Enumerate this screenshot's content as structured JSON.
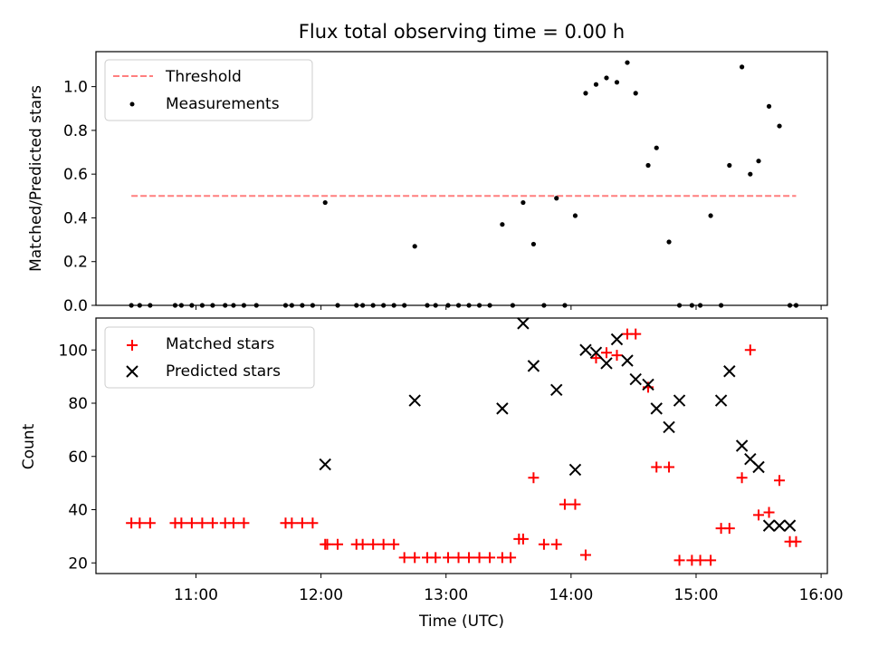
{
  "chart_data": [
    {
      "type": "scatter",
      "title": "Flux total observing time = 0.00 h",
      "ylabel": "Matched/Predicted stars",
      "xlabel": "",
      "xlim": [
        "10:12",
        "16:03"
      ],
      "ylim": [
        0,
        1.16
      ],
      "xticks": [
        "11:00",
        "12:00",
        "13:00",
        "14:00",
        "15:00",
        "16:00"
      ],
      "yticks": [
        0.0,
        0.2,
        0.4,
        0.6,
        0.8,
        1.0
      ],
      "ytick_labels": [
        "0.0",
        "0.2",
        "0.4",
        "0.6",
        "0.8",
        "1.0"
      ],
      "legend_position": "top-left",
      "series": [
        {
          "name": "Threshold",
          "kind": "line",
          "style": "dashed",
          "color": "#ff7f7f",
          "x": [
            "10:29",
            "15:48"
          ],
          "y": [
            0.5,
            0.5
          ]
        },
        {
          "name": "Measurements",
          "kind": "scatter",
          "marker": "dot",
          "color": "#000000",
          "x": [
            "10:29",
            "10:33",
            "10:38",
            "10:50",
            "10:53",
            "10:58",
            "11:03",
            "11:08",
            "11:14",
            "11:18",
            "11:23",
            "11:29",
            "11:43",
            "11:46",
            "11:51",
            "11:56",
            "12:02",
            "12:08",
            "12:17",
            "12:20",
            "12:25",
            "12:30",
            "12:35",
            "12:40",
            "12:45",
            "12:51",
            "12:55",
            "13:01",
            "13:06",
            "13:11",
            "13:16",
            "13:21",
            "13:27",
            "13:32",
            "13:37",
            "13:42",
            "13:47",
            "13:53",
            "13:57",
            "14:02",
            "14:07",
            "14:12",
            "14:17",
            "14:22",
            "14:27",
            "14:31",
            "14:37",
            "14:41",
            "14:47",
            "14:52",
            "14:58",
            "15:02",
            "15:07",
            "15:12",
            "15:16",
            "15:22",
            "15:26",
            "15:30",
            "15:35",
            "15:40",
            "15:45",
            "15:48"
          ],
          "y": [
            0,
            0,
            0,
            0,
            0,
            0,
            0,
            0,
            0,
            0,
            0,
            0,
            0,
            0,
            0,
            0,
            0.47,
            0,
            0,
            0,
            0,
            0,
            0,
            0,
            0.27,
            0,
            0,
            0,
            0,
            0,
            0,
            0,
            0.37,
            0,
            0.47,
            0.28,
            0,
            0.49,
            0,
            0.41,
            0.97,
            1.01,
            1.04,
            1.02,
            1.11,
            0.97,
            0.64,
            0.72,
            0.29,
            0,
            0,
            0,
            0.41,
            0,
            0.64,
            1.09,
            0.6,
            0.66,
            0.91,
            0.82,
            0,
            0
          ]
        }
      ]
    },
    {
      "type": "scatter",
      "title": "",
      "ylabel": "Count",
      "xlabel": "Time (UTC)",
      "xlim": [
        "10:12",
        "16:03"
      ],
      "ylim": [
        16,
        112
      ],
      "xticks": [
        "11:00",
        "12:00",
        "13:00",
        "14:00",
        "15:00",
        "16:00"
      ],
      "yticks": [
        20,
        40,
        60,
        80,
        100
      ],
      "ytick_labels": [
        "20",
        "40",
        "60",
        "80",
        "100"
      ],
      "legend_position": "top-left",
      "series": [
        {
          "name": "Matched stars",
          "kind": "scatter",
          "marker": "plus",
          "color": "#ff0000",
          "x": [
            "10:29",
            "10:33",
            "10:38",
            "10:50",
            "10:53",
            "10:58",
            "11:03",
            "11:08",
            "11:14",
            "11:18",
            "11:23",
            "11:43",
            "11:46",
            "11:51",
            "11:56",
            "12:02",
            "12:03",
            "12:08",
            "12:17",
            "12:20",
            "12:25",
            "12:30",
            "12:35",
            "12:40",
            "12:45",
            "12:51",
            "12:55",
            "13:01",
            "13:06",
            "13:11",
            "13:16",
            "13:21",
            "13:27",
            "13:31",
            "13:35",
            "13:37",
            "13:42",
            "13:47",
            "13:53",
            "13:57",
            "14:02",
            "14:07",
            "14:12",
            "14:17",
            "14:22",
            "14:27",
            "14:31",
            "14:37",
            "14:41",
            "14:47",
            "14:52",
            "14:58",
            "15:02",
            "15:07",
            "15:12",
            "15:16",
            "15:22",
            "15:26",
            "15:30",
            "15:35",
            "15:40",
            "15:45",
            "15:48"
          ],
          "y": [
            35,
            35,
            35,
            35,
            35,
            35,
            35,
            35,
            35,
            35,
            35,
            35,
            35,
            35,
            35,
            27,
            27,
            27,
            27,
            27,
            27,
            27,
            27,
            22,
            22,
            22,
            22,
            22,
            22,
            22,
            22,
            22,
            22,
            22,
            29,
            29,
            52,
            27,
            27,
            42,
            42,
            23,
            97,
            99,
            98,
            106,
            106,
            86,
            56,
            56,
            21,
            21,
            21,
            21,
            33,
            33,
            52,
            100,
            38,
            39,
            51,
            28,
            28
          ]
        },
        {
          "name": "Predicted stars",
          "kind": "scatter",
          "marker": "x",
          "color": "#000000",
          "x": [
            "12:02",
            "12:45",
            "13:27",
            "13:37",
            "13:42",
            "13:53",
            "14:02",
            "14:07",
            "14:12",
            "14:17",
            "14:22",
            "14:27",
            "14:31",
            "14:37",
            "14:41",
            "14:47",
            "14:52",
            "15:12",
            "15:16",
            "15:22",
            "15:26",
            "15:30",
            "15:35",
            "15:40",
            "15:45"
          ],
          "y": [
            57,
            81,
            78,
            110,
            94,
            85,
            55,
            100,
            99,
            95,
            104,
            96,
            89,
            87,
            78,
            71,
            81,
            81,
            92,
            64,
            59,
            56,
            34,
            34,
            34
          ]
        }
      ]
    }
  ]
}
